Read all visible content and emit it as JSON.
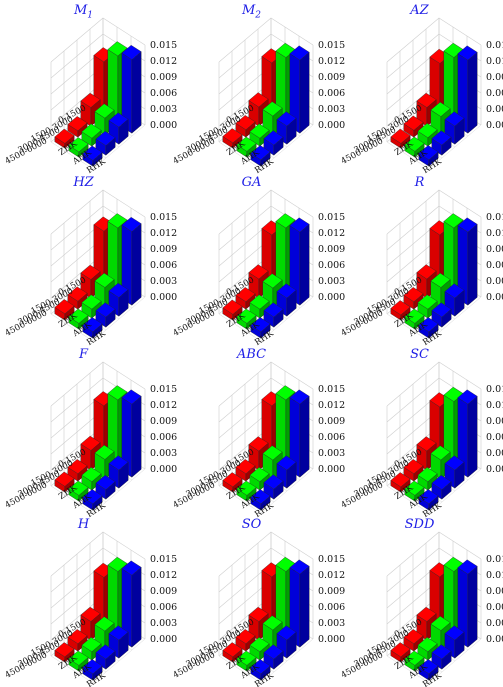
{
  "chart_data": {
    "type": "bar3d",
    "layout": "4x3 grid of 3D bar charts",
    "x_categories": [
      "0-1500",
      "1500-3000",
      "3000-4500",
      "4500-6000"
    ],
    "y_categories": [
      "ZHK",
      "AHK",
      "RHK"
    ],
    "z_ticks": [
      "0.000",
      "0.003",
      "0.006",
      "0.009",
      "0.012",
      "0.015"
    ],
    "zlim": [
      0,
      0.015
    ],
    "series_colors": {
      "ZHK": "#ff0000",
      "AHK": "#00ff00",
      "RHK": "#0000ff"
    },
    "panels": [
      {
        "title": "M",
        "subscript": "1",
        "values": {
          "ZHK": [
            0.01,
            0.0035,
            0.0012,
            0.0009
          ],
          "AHK": [
            0.0128,
            0.0032,
            0.0015,
            0.001
          ],
          "RHK": [
            0.0138,
            0.0032,
            0.0018,
            0.0011
          ]
        }
      },
      {
        "title": "M",
        "subscript": "2",
        "values": {
          "ZHK": [
            0.0098,
            0.0036,
            0.0014,
            0.001
          ],
          "AHK": [
            0.0125,
            0.0036,
            0.0015,
            0.0011
          ],
          "RHK": [
            0.0137,
            0.0034,
            0.0019,
            0.0012
          ]
        }
      },
      {
        "title": "AZ",
        "subscript": "",
        "values": {
          "ZHK": [
            0.0097,
            0.0035,
            0.0013,
            0.0009
          ],
          "AHK": [
            0.0125,
            0.0035,
            0.0016,
            0.0011
          ],
          "RHK": [
            0.0137,
            0.0034,
            0.0019,
            0.0012
          ]
        }
      },
      {
        "title": "HZ",
        "subscript": "",
        "values": {
          "ZHK": [
            0.0105,
            0.0035,
            0.0015,
            0.0012
          ],
          "AHK": [
            0.0128,
            0.0037,
            0.0017,
            0.0011
          ],
          "RHK": [
            0.0138,
            0.0035,
            0.0019,
            0.0012
          ]
        }
      },
      {
        "title": "GA",
        "subscript": "",
        "values": {
          "ZHK": [
            0.0098,
            0.0036,
            0.0014,
            0.0011
          ],
          "AHK": [
            0.0128,
            0.0036,
            0.0017,
            0.0011
          ],
          "RHK": [
            0.0137,
            0.0034,
            0.0019,
            0.0012
          ]
        }
      },
      {
        "title": "R",
        "subscript": "",
        "values": {
          "ZHK": [
            0.0098,
            0.0036,
            0.0014,
            0.001
          ],
          "AHK": [
            0.0128,
            0.0037,
            0.0017,
            0.0011
          ],
          "RHK": [
            0.0137,
            0.0034,
            0.0019,
            0.0012
          ]
        }
      },
      {
        "title": "F",
        "subscript": "",
        "values": {
          "ZHK": [
            0.01,
            0.0037,
            0.0014,
            0.0011
          ],
          "AHK": [
            0.0128,
            0.0037,
            0.0016,
            0.0011
          ],
          "RHK": [
            0.0137,
            0.0034,
            0.0018,
            0.0012
          ]
        }
      },
      {
        "title": "ABC",
        "subscript": "",
        "values": {
          "ZHK": [
            0.01,
            0.0036,
            0.0014,
            0.001
          ],
          "AHK": [
            0.0128,
            0.0036,
            0.0016,
            0.0011
          ],
          "RHK": [
            0.0137,
            0.0034,
            0.0019,
            0.0012
          ]
        }
      },
      {
        "title": "SC",
        "subscript": "",
        "values": {
          "ZHK": [
            0.0098,
            0.0036,
            0.0014,
            0.001
          ],
          "AHK": [
            0.0125,
            0.0036,
            0.0016,
            0.0011
          ],
          "RHK": [
            0.0137,
            0.0034,
            0.0018,
            0.0012
          ]
        }
      },
      {
        "title": "H",
        "subscript": "",
        "values": {
          "ZHK": [
            0.0097,
            0.0035,
            0.0014,
            0.001
          ],
          "AHK": [
            0.0125,
            0.0034,
            0.0016,
            0.0011
          ],
          "RHK": [
            0.0135,
            0.0034,
            0.0019,
            0.0012
          ]
        }
      },
      {
        "title": "SO",
        "subscript": "",
        "values": {
          "ZHK": [
            0.0098,
            0.0035,
            0.0014,
            0.001
          ],
          "AHK": [
            0.0125,
            0.0036,
            0.0016,
            0.0011
          ],
          "RHK": [
            0.0137,
            0.0034,
            0.0019,
            0.0012
          ]
        }
      },
      {
        "title": "SDD",
        "subscript": "",
        "values": {
          "ZHK": [
            0.0098,
            0.0035,
            0.0014,
            0.001
          ],
          "AHK": [
            0.0125,
            0.0035,
            0.0016,
            0.0011
          ],
          "RHK": [
            0.0137,
            0.0034,
            0.0019,
            0.0012
          ]
        }
      }
    ]
  }
}
